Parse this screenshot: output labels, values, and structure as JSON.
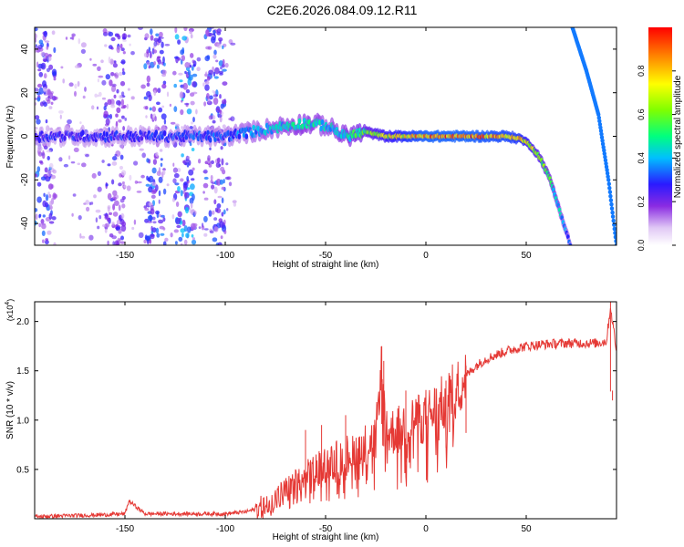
{
  "title": "C2E6.2026.084.09.12.R11",
  "chart_data": [
    {
      "type": "heatmap",
      "xlabel": "Height of straight line (km)",
      "ylabel": "Frequency (Hz)",
      "xlim": [
        -195,
        95
      ],
      "ylim": [
        -50,
        50
      ],
      "x_ticks": [
        -150,
        -100,
        -50,
        0,
        50
      ],
      "y_ticks": [
        -40,
        -20,
        0,
        20,
        40
      ],
      "colorbar": {
        "label": "Normalized spectral amplitude",
        "range": [
          0.0,
          1.0
        ],
        "ticks": [
          "0.0",
          "0.2",
          "0.4",
          "0.6",
          "0.8"
        ],
        "tick_values": [
          0.0,
          0.2,
          0.4,
          0.6,
          0.8
        ]
      },
      "central_trace": {
        "heights": [
          -195,
          -150,
          -100,
          -75,
          -60,
          -50,
          -40,
          -30,
          -20,
          0,
          20,
          40,
          47,
          52,
          57,
          62,
          67,
          72
        ],
        "freqs": [
          0,
          0,
          0,
          4,
          6,
          5,
          0,
          2,
          0,
          0,
          0,
          0,
          -1,
          -4,
          -10,
          -20,
          -35,
          -50
        ],
        "amplitudes": [
          0.3,
          0.3,
          0.35,
          0.45,
          0.5,
          0.45,
          0.5,
          0.6,
          0.75,
          0.95,
          0.95,
          0.9,
          0.85,
          0.75,
          0.65,
          0.55,
          0.45,
          0.35
        ]
      },
      "steep_line": {
        "heights": [
          73,
          80,
          86,
          91,
          95
        ],
        "freqs": [
          50,
          30,
          10,
          -20,
          -50
        ],
        "amplitude": 0.35
      },
      "noise_bands": [
        {
          "from": -195,
          "to": -185,
          "level": 0.3
        },
        {
          "from": -160,
          "to": -150,
          "level": 0.25
        },
        {
          "from": -140,
          "to": -130,
          "level": 0.3
        },
        {
          "from": -125,
          "to": -115,
          "level": 0.35
        },
        {
          "from": -110,
          "to": -100,
          "level": 0.3
        }
      ]
    },
    {
      "type": "line",
      "xlabel": "Height of straight line (km)",
      "ylabel": "SNR (10 * v/v)",
      "multiplier": "(x10",
      "multiplier_exp": "4",
      "multiplier_close": ")",
      "xlim": [
        -195,
        95
      ],
      "ylim": [
        0.0,
        2.2
      ],
      "x_ticks": [
        -150,
        -100,
        -50,
        0,
        50
      ],
      "y_ticks": [
        0.5,
        1.0,
        1.5,
        2.0
      ],
      "y_tick_labels": [
        "0.5",
        "1.0",
        "1.5",
        "2.0"
      ],
      "series": [
        {
          "name": "SNR",
          "color": "#e53935",
          "x": [
            -195,
            -180,
            -160,
            -150,
            -148,
            -140,
            -120,
            -100,
            -90,
            -80,
            -75,
            -70,
            -65,
            -60,
            -55,
            -50,
            -45,
            -40,
            -35,
            -30,
            -25,
            -22,
            -20,
            -15,
            -10,
            -5,
            0,
            5,
            10,
            15,
            20,
            25,
            30,
            40,
            50,
            60,
            70,
            80,
            85,
            90,
            92,
            95
          ],
          "y": [
            0.02,
            0.03,
            0.04,
            0.05,
            0.18,
            0.05,
            0.05,
            0.05,
            0.07,
            0.12,
            0.2,
            0.28,
            0.35,
            0.42,
            0.5,
            0.55,
            0.6,
            0.65,
            0.7,
            0.75,
            0.82,
            1.6,
            0.85,
            0.9,
            0.95,
            1.0,
            1.05,
            1.1,
            1.2,
            1.3,
            1.45,
            1.55,
            1.62,
            1.7,
            1.75,
            1.77,
            1.78,
            1.78,
            1.78,
            1.8,
            2.15,
            1.7
          ]
        }
      ],
      "spikes": [
        {
          "x": -60,
          "y": 0.9
        },
        {
          "x": -52,
          "y": 0.95
        },
        {
          "x": -40,
          "y": 1.05
        },
        {
          "x": -22,
          "y": 1.75
        },
        {
          "x": -21,
          "y": 1.6
        },
        {
          "x": -10,
          "y": 1.3
        },
        {
          "x": 10,
          "y": 1.4
        },
        {
          "x": 20,
          "y": 1.55
        },
        {
          "x": 92,
          "y": 2.2
        },
        {
          "x": 93,
          "y": 1.3
        }
      ]
    }
  ]
}
